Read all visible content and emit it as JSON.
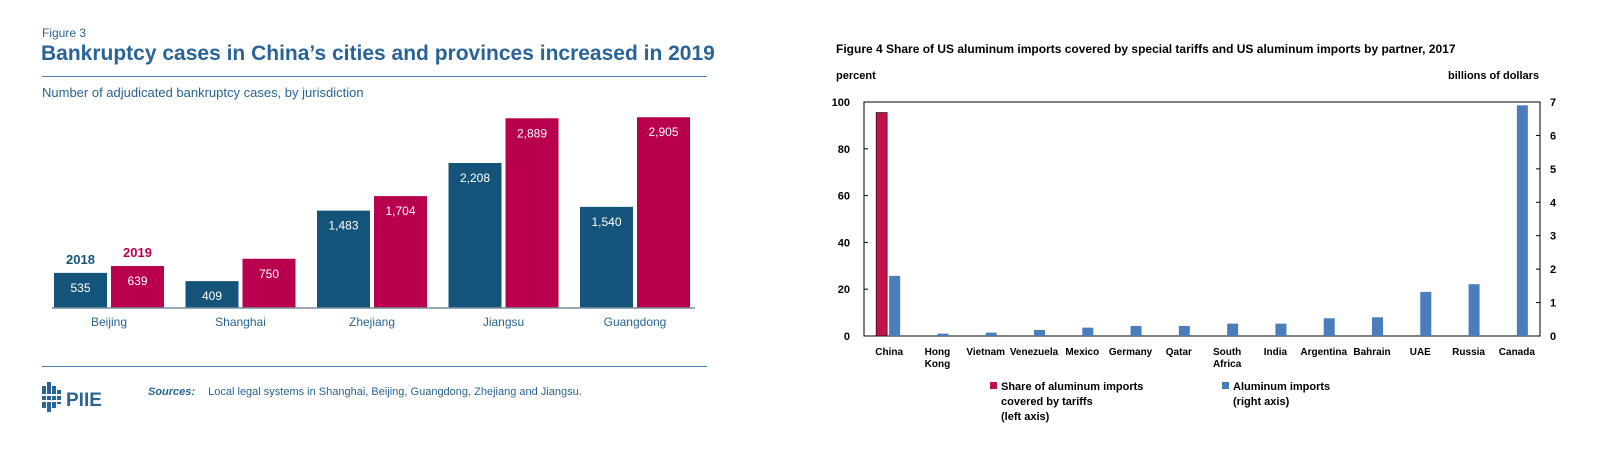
{
  "left": {
    "figure_label": "Figure 3",
    "title": "Bankruptcy cases in China’s cities and provinces increased in 2019",
    "subtitle": "Number of adjudicated bankruptcy cases, by jurisdiction",
    "sources_label": "Sources:",
    "sources_text": "Local legal systems in Shanghai, Beijing, Guangdong, Zhejiang and Jiangsu.",
    "logo_text": "PIIE",
    "colors": {
      "series_2018": "#14547a",
      "series_2019": "#b8004f",
      "text": "#2a6496"
    }
  },
  "right": {
    "title": "Figure 4 Share of US aluminum imports covered by special tariffs and US aluminum imports by partner, 2017",
    "left_unit": "percent",
    "right_unit": "billions of dollars",
    "legend": {
      "share_lines": [
        "Share of aluminum imports",
        "covered by tariffs",
        "(left axis)"
      ],
      "imports_lines": [
        "Aluminum imports",
        "(right axis)"
      ]
    },
    "colors": {
      "share": "#c0134a",
      "imports": "#4a7ebb"
    }
  },
  "chart_data": [
    {
      "type": "bar",
      "categories": [
        "Beijing",
        "Shanghai",
        "Zhejiang",
        "Jiangsu",
        "Guangdong"
      ],
      "series": [
        {
          "name": "2018",
          "values": [
            535,
            409,
            1483,
            2208,
            1540
          ],
          "labels": [
            "535",
            "409",
            "1,483",
            "2,208",
            "1,540"
          ]
        },
        {
          "name": "2019",
          "values": [
            639,
            750,
            1704,
            2889,
            2905
          ],
          "labels": [
            "639",
            "750",
            "1,704",
            "2,889",
            "2,905"
          ]
        }
      ],
      "title": "Bankruptcy cases in China’s cities and provinces increased in 2019",
      "subtitle": "Number of adjudicated bankruptcy cases, by jurisdiction",
      "ylim": [
        0,
        3000
      ],
      "grid": false,
      "legend": "inline labels above Beijing bars"
    },
    {
      "type": "bar",
      "title": "Figure 4 Share of US aluminum imports covered by special tariffs and US aluminum imports by partner, 2017",
      "categories": [
        "China",
        "Hong Kong",
        "Vietnam",
        "Venezuela",
        "Mexico",
        "Germany",
        "Qatar",
        "South Africa",
        "India",
        "Argentina",
        "Bahrain",
        "UAE",
        "Russia",
        "Canada"
      ],
      "category_lines": [
        [
          "China"
        ],
        [
          "Hong",
          "Kong"
        ],
        [
          "Vietnam"
        ],
        [
          "Venezuela"
        ],
        [
          "Mexico"
        ],
        [
          "Germany"
        ],
        [
          "Qatar"
        ],
        [
          "South",
          "Africa"
        ],
        [
          "India"
        ],
        [
          "Argentina"
        ],
        [
          "Bahrain"
        ],
        [
          "UAE"
        ],
        [
          "Russia"
        ],
        [
          "Canada"
        ]
      ],
      "series": [
        {
          "name": "Share of aluminum imports covered by tariffs (left axis)",
          "axis": "left",
          "values": [
            95.5,
            0,
            0,
            0,
            0,
            0,
            0,
            0,
            0,
            0,
            0,
            0,
            0,
            0
          ]
        },
        {
          "name": "Aluminum imports (right axis)",
          "axis": "right",
          "values": [
            1.8,
            0.07,
            0.1,
            0.18,
            0.25,
            0.3,
            0.3,
            0.37,
            0.37,
            0.53,
            0.56,
            1.32,
            1.55,
            6.9
          ]
        }
      ],
      "ylabel": "percent",
      "ylabel_right": "billions of dollars",
      "ylim": [
        0,
        100
      ],
      "ylim_right": [
        0,
        7
      ],
      "yticks": [
        "0",
        "20",
        "40",
        "60",
        "80",
        "100"
      ],
      "yticks_right": [
        "0",
        "1",
        "2",
        "3",
        "4",
        "5",
        "6",
        "7"
      ],
      "grid": false,
      "legend": "bottom"
    }
  ]
}
